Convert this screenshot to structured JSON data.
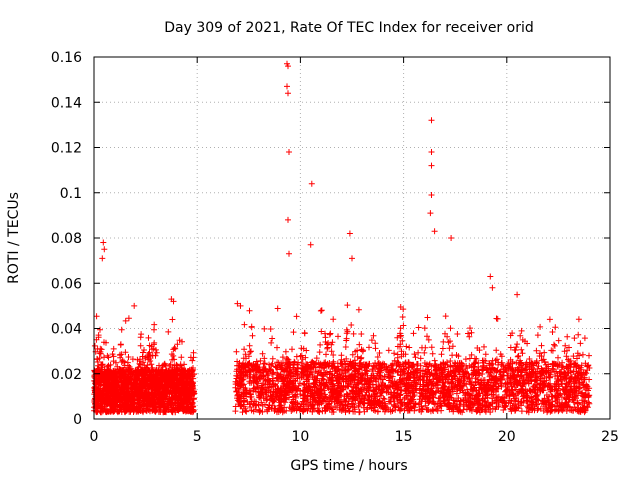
{
  "chart_data": {
    "type": "scatter",
    "title": "Day 309 of 2021, Rate Of TEC Index for receiver orid",
    "xlabel": "GPS time / hours",
    "ylabel": "ROTI / TECUs",
    "xlim": [
      0,
      25
    ],
    "ylim": [
      0,
      0.16
    ],
    "x_ticks": [
      0,
      5,
      10,
      15,
      20,
      25
    ],
    "x_tick_labels": [
      "0",
      "5",
      "10",
      "15",
      "20",
      "25"
    ],
    "y_ticks": [
      0,
      0.02,
      0.04,
      0.06,
      0.08,
      0.1,
      0.12,
      0.14,
      0.16
    ],
    "y_tick_labels": [
      "0",
      "0.02",
      "0.04",
      "0.06",
      "0.08",
      "0.1",
      "0.12",
      "0.14",
      "0.16"
    ],
    "grid": true,
    "marker": "+",
    "color": "#ff0000",
    "data_gap_hours": [
      4.85,
      6.85
    ],
    "notable_points": [
      {
        "x": 9.35,
        "y": 0.157
      },
      {
        "x": 9.4,
        "y": 0.156
      },
      {
        "x": 9.35,
        "y": 0.147
      },
      {
        "x": 9.4,
        "y": 0.144
      },
      {
        "x": 9.45,
        "y": 0.118
      },
      {
        "x": 9.4,
        "y": 0.088
      },
      {
        "x": 10.55,
        "y": 0.104
      },
      {
        "x": 16.35,
        "y": 0.132
      },
      {
        "x": 16.35,
        "y": 0.118
      },
      {
        "x": 16.35,
        "y": 0.112
      },
      {
        "x": 16.35,
        "y": 0.099
      },
      {
        "x": 16.3,
        "y": 0.091
      },
      {
        "x": 12.4,
        "y": 0.082
      },
      {
        "x": 17.3,
        "y": 0.08
      },
      {
        "x": 0.45,
        "y": 0.078
      },
      {
        "x": 0.5,
        "y": 0.075
      },
      {
        "x": 0.4,
        "y": 0.071
      },
      {
        "x": 9.45,
        "y": 0.073
      },
      {
        "x": 10.5,
        "y": 0.077
      },
      {
        "x": 16.5,
        "y": 0.083
      },
      {
        "x": 12.5,
        "y": 0.071
      },
      {
        "x": 19.2,
        "y": 0.063
      },
      {
        "x": 19.3,
        "y": 0.058
      },
      {
        "x": 20.5,
        "y": 0.055
      },
      {
        "x": 3.75,
        "y": 0.053
      },
      {
        "x": 3.85,
        "y": 0.052
      },
      {
        "x": 6.95,
        "y": 0.051
      },
      {
        "x": 7.1,
        "y": 0.05
      },
      {
        "x": 1.95,
        "y": 0.05
      },
      {
        "x": 3.8,
        "y": 0.044
      }
    ],
    "dense_clusters": [
      {
        "x_start": 0.0,
        "x_end": 4.85,
        "baseline_low": 0.003,
        "baseline_high": 0.022,
        "peak_y": 0.045
      },
      {
        "x_start": 6.85,
        "x_end": 24.0,
        "baseline_low": 0.003,
        "baseline_high": 0.025,
        "peak_y": 0.055
      }
    ]
  }
}
